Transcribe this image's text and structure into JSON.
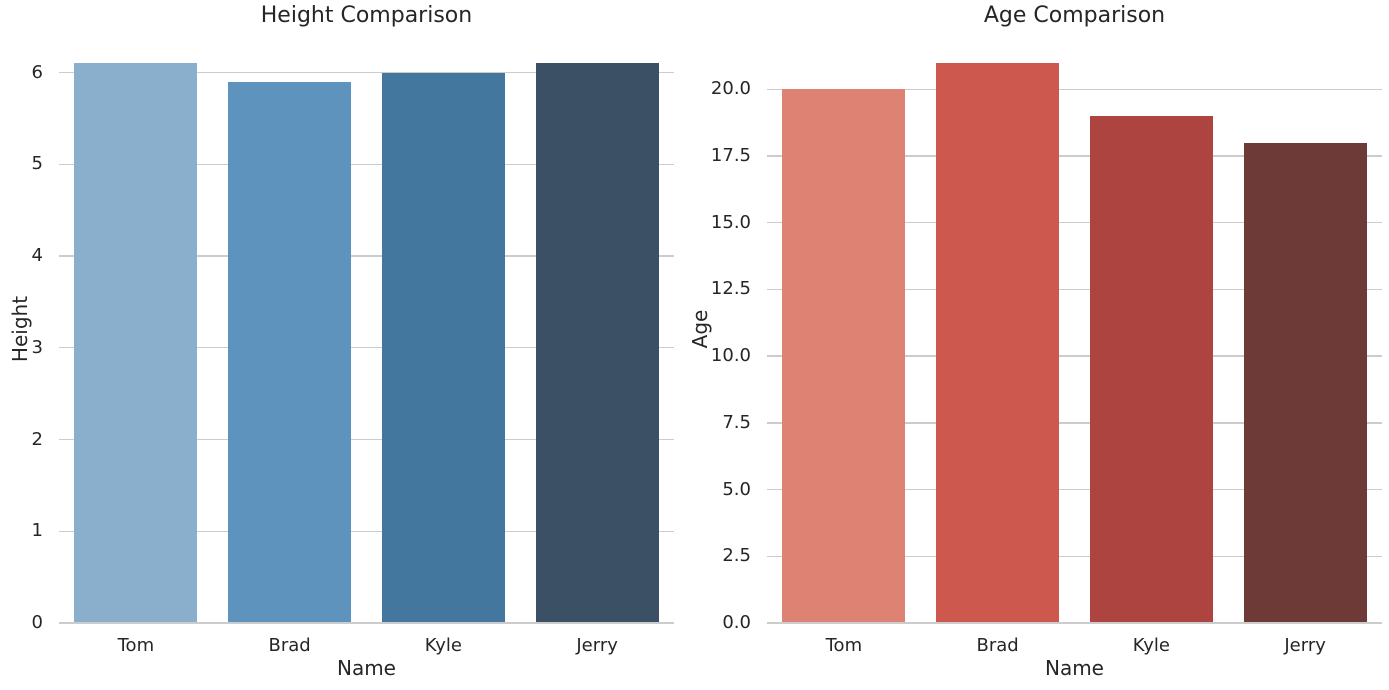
{
  "figure": {
    "background": "#ffffff",
    "text_color": "#262626"
  },
  "chart_data": [
    {
      "type": "bar",
      "title": "Height Comparison",
      "xlabel": "Name",
      "ylabel": "Height",
      "categories": [
        "Tom",
        "Brad",
        "Kyle",
        "Jerry"
      ],
      "values": [
        6.1,
        5.9,
        6.0,
        6.1
      ],
      "bar_colors": [
        "#8aafcc",
        "#5d93bd",
        "#44779d",
        "#3b5064"
      ],
      "ylim": [
        0,
        6.42
      ],
      "yticks": [
        0,
        1,
        2,
        3,
        4,
        5,
        6
      ],
      "ytick_labels": [
        "0",
        "1",
        "2",
        "3",
        "4",
        "5",
        "6"
      ],
      "grid": true,
      "grid_color": "#cccccc",
      "axis_line_color": "#cccccc",
      "legend": "none",
      "bar_width_fraction": 0.8
    },
    {
      "type": "bar",
      "title": "Age Comparison",
      "xlabel": "Name",
      "ylabel": "Age",
      "categories": [
        "Tom",
        "Brad",
        "Kyle",
        "Jerry"
      ],
      "values": [
        20,
        21,
        19,
        18
      ],
      "bar_colors": [
        "#de8274",
        "#cd594e",
        "#ae4440",
        "#6e3a37"
      ],
      "ylim": [
        0,
        22.07
      ],
      "yticks": [
        0,
        2.5,
        5,
        7.5,
        10,
        12.5,
        15,
        17.5,
        20
      ],
      "ytick_labels": [
        "0.0",
        "2.5",
        "5.0",
        "7.5",
        "10.0",
        "12.5",
        "15.0",
        "17.5",
        "20.0"
      ],
      "grid": true,
      "grid_color": "#cccccc",
      "axis_line_color": "#cccccc",
      "legend": "none",
      "bar_width_fraction": 0.8
    }
  ]
}
